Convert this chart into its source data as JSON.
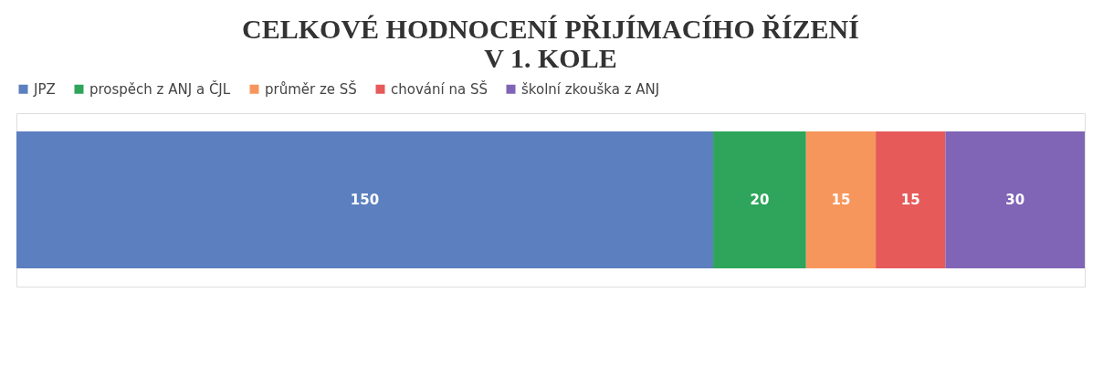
{
  "chart_data": {
    "type": "bar",
    "title": "CELKOVÉ HODNOCENÍ PŘIJÍMACÍHO ŘÍZENÍ\nV 1. KOLE",
    "orientation": "horizontal",
    "stacked": true,
    "categories": [
      null
    ],
    "data_labels": true,
    "legend": "top",
    "tick_labels": false,
    "series": [
      {
        "name": "JPZ",
        "color": "#5b7fbf",
        "values": [
          150
        ]
      },
      {
        "name": "prospěch z ANJ a ČJL",
        "color": "#2ea55a",
        "values": [
          20
        ]
      },
      {
        "name": "průměr ze SŠ",
        "color": "#f7965c",
        "values": [
          15
        ]
      },
      {
        "name": "chování na SŠ",
        "color": "#e65a5a",
        "values": [
          15
        ]
      },
      {
        "name": "školní zkouška z ANJ",
        "color": "#8064b6",
        "values": [
          30
        ]
      }
    ]
  }
}
